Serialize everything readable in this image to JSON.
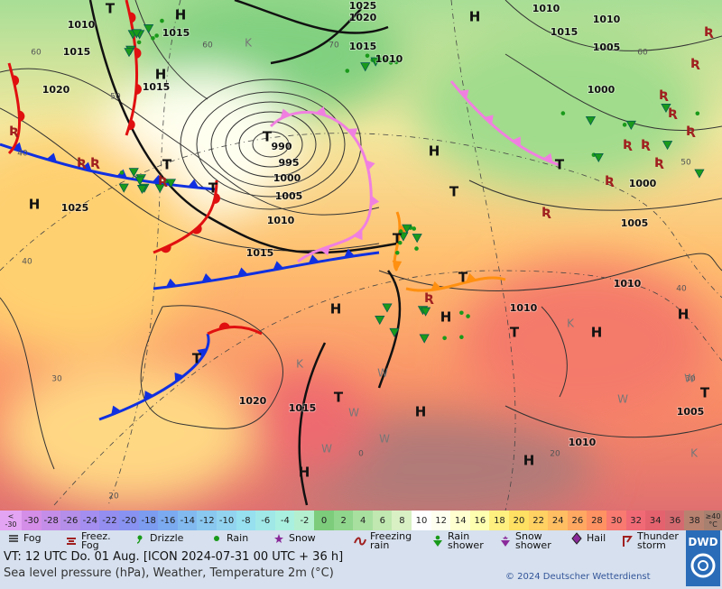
{
  "map": {
    "pressure_labels": [
      "1010",
      "1015",
      "1020",
      "1015",
      "1015",
      "1025",
      "1020",
      "1015",
      "1010",
      "1010",
      "1010",
      "1015",
      "1005",
      "1000",
      "990",
      "995",
      "1000",
      "1005",
      "1010",
      "1015",
      "1025",
      "1000",
      "1005",
      "1010",
      "1010",
      "1020",
      "1015",
      "1005",
      "1010"
    ],
    "grid_labels": [
      "60",
      "70",
      "60",
      "50",
      "40",
      "40",
      "30",
      "20",
      "60",
      "50",
      "40",
      "30",
      "20",
      "0"
    ],
    "symbols": [
      "H",
      "H",
      "H",
      "H",
      "H",
      "H",
      "H",
      "H",
      "H",
      "H",
      "H",
      "H",
      "T",
      "T",
      "T",
      "T",
      "T",
      "T",
      "T",
      "T",
      "T",
      "T",
      "T",
      "T",
      "K",
      "K",
      "K",
      "K",
      "W",
      "W",
      "W",
      "W",
      "W",
      "W"
    ]
  },
  "temperature_legend": {
    "low_label": [
      "<",
      "-30"
    ],
    "cells": [
      {
        "label": "-30",
        "color": "#d48ee8"
      },
      {
        "label": "-28",
        "color": "#c48ee8"
      },
      {
        "label": "-26",
        "color": "#b48ee8"
      },
      {
        "label": "-24",
        "color": "#a48ef0"
      },
      {
        "label": "-22",
        "color": "#948ef0"
      },
      {
        "label": "-20",
        "color": "#8892f0"
      },
      {
        "label": "-18",
        "color": "#7c9cf0"
      },
      {
        "label": "-16",
        "color": "#7caaf0"
      },
      {
        "label": "-14",
        "color": "#82baf0"
      },
      {
        "label": "-12",
        "color": "#8ac8f0"
      },
      {
        "label": "-10",
        "color": "#92d4f0"
      },
      {
        "label": "-8",
        "color": "#96e0f0"
      },
      {
        "label": "-6",
        "color": "#a0e8e8"
      },
      {
        "label": "-4",
        "color": "#aaf0e0"
      },
      {
        "label": "-2",
        "color": "#b4f0d0"
      },
      {
        "label": "0",
        "color": "#7ccc7c"
      },
      {
        "label": "2",
        "color": "#90d68c"
      },
      {
        "label": "4",
        "color": "#a8e0a0"
      },
      {
        "label": "6",
        "color": "#c0e8b0"
      },
      {
        "label": "8",
        "color": "#d8f0c4"
      },
      {
        "label": "10",
        "color": "#ffffff"
      },
      {
        "label": "12",
        "color": "#fffff0"
      },
      {
        "label": "14",
        "color": "#ffffd0"
      },
      {
        "label": "16",
        "color": "#ffffb0"
      },
      {
        "label": "18",
        "color": "#fff080"
      },
      {
        "label": "20",
        "color": "#ffe062"
      },
      {
        "label": "22",
        "color": "#ffd062"
      },
      {
        "label": "24",
        "color": "#ffbe62"
      },
      {
        "label": "26",
        "color": "#ffa862"
      },
      {
        "label": "28",
        "color": "#ff9262"
      },
      {
        "label": "30",
        "color": "#f87a70"
      },
      {
        "label": "32",
        "color": "#f06a76"
      },
      {
        "label": "34",
        "color": "#e4626e"
      },
      {
        "label": "36",
        "color": "#d46a70"
      },
      {
        "label": "38",
        "color": "#b88270"
      }
    ],
    "high_label": [
      "≥40",
      "°C"
    ]
  },
  "weather_legend": [
    "Fog",
    "Freez. Fog",
    "Drizzle",
    "Rain",
    "Snow",
    "Freezing rain",
    "Rain shower",
    "Snow shower",
    "Hail",
    "Thunder storm"
  ],
  "footer": {
    "valid_time": "VT: 12 UTC Do.  01 Aug. [ICON 2024-07-31  00 UTC + 36 h]",
    "description": "Sea level pressure (hPa), Weather, Temperature 2m (°C)",
    "copyright": "© 2024 Deutscher Wetterdienst",
    "logo": "DWD"
  }
}
